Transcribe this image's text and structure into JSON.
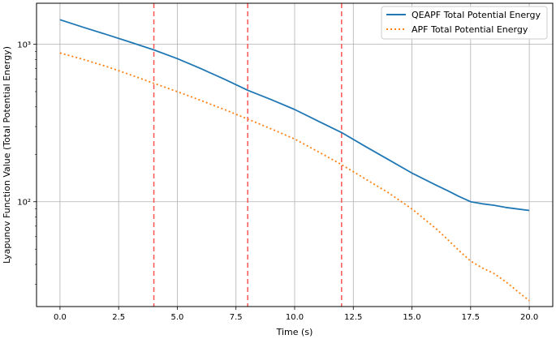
{
  "chart_data": {
    "type": "line",
    "xlabel": "Time (s)",
    "ylabel": "Lyapunov Function Value (Total Potential Energy)",
    "xlim": [
      -1.0,
      21.0
    ],
    "ylim": [
      21.6,
      1820
    ],
    "yscale": "log",
    "grid": true,
    "legend_position": "top-right",
    "x_ticks": [
      0.0,
      2.5,
      5.0,
      7.5,
      10.0,
      12.5,
      15.0,
      17.5,
      20.0
    ],
    "x_tick_labels": [
      "0.0",
      "2.5",
      "5.0",
      "7.5",
      "10.0",
      "12.5",
      "15.0",
      "17.5",
      "20.0"
    ],
    "y_ticks": [
      100,
      1000
    ],
    "y_tick_labels": [
      "10²",
      "10³"
    ],
    "vlines": {
      "x": [
        4,
        8,
        12
      ],
      "color": "#ff5555",
      "style": "dashed"
    },
    "series": [
      {
        "name": "QEAPF Total Potential Energy",
        "color": "#1f77b4",
        "style": "solid",
        "x": [
          0,
          1,
          2,
          3,
          4,
          5,
          6,
          7,
          8,
          9,
          10,
          11,
          12,
          13,
          14,
          15,
          16,
          16.5,
          17,
          17.5,
          18,
          18.5,
          19,
          20
        ],
        "y": [
          1430,
          1280,
          1150,
          1030,
          920,
          810,
          700,
          600,
          510,
          445,
          385,
          325,
          275,
          225,
          185,
          152,
          128,
          118,
          108,
          100,
          97,
          95,
          92,
          88
        ]
      },
      {
        "name": "APF Total Potential Energy",
        "color": "#ff7f0e",
        "style": "dotted",
        "x": [
          0,
          1,
          2,
          3,
          4,
          5,
          6,
          7,
          8,
          9,
          10,
          11,
          12,
          13,
          14,
          15,
          16,
          16.5,
          17,
          17.5,
          18,
          18.5,
          19,
          19.5,
          20
        ],
        "y": [
          880,
          800,
          720,
          640,
          565,
          500,
          440,
          385,
          335,
          290,
          250,
          208,
          172,
          140,
          114,
          90,
          68,
          58,
          49,
          42,
          38,
          35,
          31,
          27,
          23.5
        ]
      }
    ]
  }
}
